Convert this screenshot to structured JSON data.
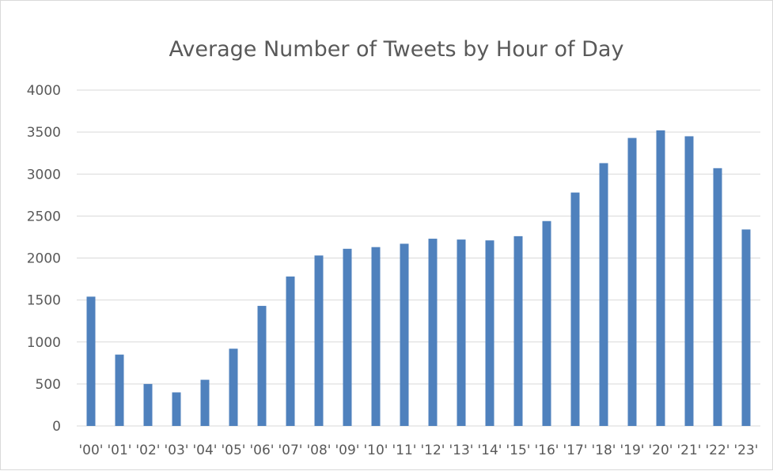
{
  "chart_data": {
    "type": "bar",
    "title": "Average Number of Tweets by Hour of Day",
    "xlabel": "",
    "ylabel": "",
    "categories": [
      "'00'",
      "'01'",
      "'02'",
      "'03'",
      "'04'",
      "'05'",
      "'06'",
      "'07'",
      "'08'",
      "'09'",
      "'10'",
      "'11'",
      "'12'",
      "'13'",
      "'14'",
      "'15'",
      "'16'",
      "'17'",
      "'18'",
      "'19'",
      "'20'",
      "'21'",
      "'22'",
      "'23'"
    ],
    "values": [
      1540,
      850,
      500,
      400,
      550,
      920,
      1430,
      1780,
      2030,
      2110,
      2130,
      2170,
      2230,
      2220,
      2210,
      2260,
      2440,
      2780,
      3130,
      3430,
      3520,
      3450,
      3070,
      2340
    ],
    "ylim": [
      0,
      4000
    ],
    "yticks": [
      0,
      500,
      1000,
      1500,
      2000,
      2500,
      3000,
      3500,
      4000
    ],
    "grid": true,
    "legend": "none",
    "bar_color": "#4f81bd",
    "grid_color": "#d9d9d9",
    "text_color": "#595959"
  }
}
